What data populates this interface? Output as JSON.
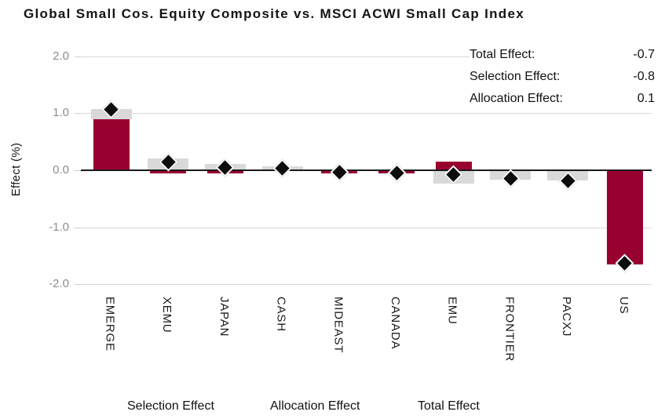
{
  "summary": {
    "rows": [
      {
        "label": "Total Effect:",
        "value": "-0.7"
      },
      {
        "label": "Selection Effect:",
        "value": "-0.8"
      },
      {
        "label": "Allocation Effect:",
        "value": "0.1"
      }
    ]
  },
  "chart_data": {
    "type": "bar",
    "title": "Global Small Cos. Equity Composite vs. MSCI ACWI Small Cap Index",
    "ylabel": "Effect (%)",
    "ylim": [
      -2.0,
      2.0
    ],
    "yticks": [
      "2.0",
      "1.0",
      "0.0",
      "-1.0",
      "-2.0"
    ],
    "grid": true,
    "legend_position": "bottom",
    "categories": [
      "EMERGE",
      "XEMU",
      "JAPAN",
      "CASH",
      "MIDEAST",
      "CANADA",
      "EMU",
      "FRONTIER",
      "PACXJ",
      "US"
    ],
    "series": [
      {
        "name": "Selection Effect",
        "type": "bar",
        "color": "#98002F",
        "values": [
          0.89,
          -0.06,
          -0.06,
          -0.02,
          -0.06,
          -0.05,
          0.15,
          -0.01,
          -0.01,
          -1.65
        ]
      },
      {
        "name": "Allocation Effect",
        "type": "bar",
        "color": "#D9D9D9",
        "values": [
          0.18,
          0.2,
          0.11,
          0.07,
          0.02,
          0.0,
          -0.23,
          -0.15,
          -0.17,
          0.0
        ]
      },
      {
        "name": "Total Effect",
        "type": "scatter",
        "marker": "diamond",
        "color": "#0D0D0D",
        "values": [
          1.07,
          0.14,
          0.05,
          0.04,
          -0.04,
          -0.05,
          -0.08,
          -0.15,
          -0.18,
          -1.63
        ]
      }
    ]
  },
  "colors": {
    "selection": "#98002F",
    "allocation": "#D9D9D9",
    "total_marker": "#0D0D0D",
    "gridline": "#D9D9D9",
    "axis": "#1A1A1A",
    "tick_text": "#8C8C8C"
  }
}
